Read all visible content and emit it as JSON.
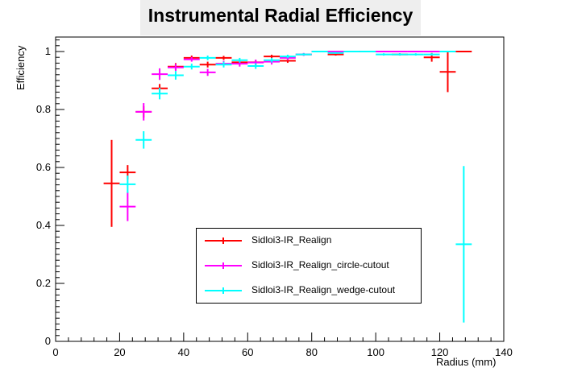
{
  "chart_data": {
    "type": "scatter",
    "title": "Instrumental Radial Efficiency",
    "xlabel": "Radius (mm)",
    "ylabel": "Efficiency",
    "xlim": [
      0,
      140
    ],
    "ylim": [
      0,
      1.05
    ],
    "x_ticks": [
      0,
      20,
      40,
      60,
      80,
      100,
      120,
      140
    ],
    "y_ticks": [
      0,
      0.2,
      0.4,
      0.6,
      0.8,
      1
    ],
    "x_tick_labels": [
      "0",
      "20",
      "40",
      "60",
      "80",
      "100",
      "120",
      "140"
    ],
    "y_tick_labels": [
      "0",
      "0.2",
      "0.4",
      "0.6",
      "0.8",
      "1"
    ],
    "legend_position": "lower-center",
    "series": [
      {
        "name": "Sidloi3-IR_Realign",
        "color": "#ff0000",
        "x_halfwidth": 2.5,
        "x": [
          17.5,
          22.5,
          27.5,
          32.5,
          37.5,
          42.5,
          47.5,
          52.5,
          57.5,
          62.5,
          67.5,
          72.5,
          77.5,
          82.5,
          87.5,
          92.5,
          97.5,
          102.5,
          107.5,
          112.5,
          117.5,
          122.5,
          127.5
        ],
        "y": [
          0.545,
          0.583,
          0.792,
          0.873,
          0.948,
          0.978,
          0.955,
          0.978,
          0.963,
          0.963,
          0.983,
          0.968,
          0.99,
          1.0,
          0.99,
          1.0,
          1.0,
          1.0,
          0.99,
          1.0,
          0.98,
          0.93,
          1.0
        ],
        "yerr": [
          0.15,
          0.025,
          0.02,
          0.015,
          0.012,
          0.008,
          0.01,
          0.007,
          0.008,
          0.008,
          0.006,
          0.007,
          0.004,
          0.002,
          0.004,
          0.002,
          0.002,
          0.002,
          0.004,
          0.002,
          0.015,
          0.07,
          0.0
        ]
      },
      {
        "name": "Sidloi3-IR_Realign_circle-cutout",
        "color": "#ff00ff",
        "x_halfwidth": 2.5,
        "x": [
          22.5,
          27.5,
          32.5,
          37.5,
          42.5,
          47.5,
          52.5,
          57.5,
          62.5,
          67.5,
          72.5,
          77.5,
          82.5,
          87.5,
          92.5,
          97.5,
          102.5,
          107.5,
          112.5,
          117.5
        ],
        "y": [
          0.465,
          0.792,
          0.922,
          0.945,
          0.973,
          0.928,
          0.958,
          0.958,
          0.962,
          0.965,
          0.978,
          0.99,
          1.0,
          1.0,
          1.0,
          1.0,
          1.0,
          1.0,
          1.0,
          1.0
        ],
        "yerr": [
          0.05,
          0.03,
          0.02,
          0.012,
          0.008,
          0.012,
          0.01,
          0.01,
          0.01,
          0.01,
          0.008,
          0.005,
          0.002,
          0.002,
          0.002,
          0.002,
          0.002,
          0.002,
          0.002,
          0.002
        ]
      },
      {
        "name": "Sidloi3-IR_Realign_wedge-cutout",
        "color": "#00ffff",
        "x_halfwidth": 2.5,
        "x": [
          22.5,
          27.5,
          32.5,
          37.5,
          42.5,
          47.5,
          52.5,
          57.5,
          62.5,
          67.5,
          72.5,
          77.5,
          82.5,
          87.5,
          92.5,
          97.5,
          102.5,
          107.5,
          112.5,
          117.5,
          122.5,
          127.5
        ],
        "y": [
          0.542,
          0.695,
          0.855,
          0.918,
          0.948,
          0.978,
          0.955,
          0.97,
          0.95,
          0.97,
          0.983,
          0.99,
          1.0,
          0.995,
          1.0,
          1.0,
          0.99,
          0.99,
          0.99,
          0.99,
          1.0,
          0.335
        ],
        "yerr": [
          0.03,
          0.03,
          0.02,
          0.015,
          0.01,
          0.008,
          0.01,
          0.008,
          0.01,
          0.008,
          0.006,
          0.004,
          0.002,
          0.003,
          0.002,
          0.002,
          0.004,
          0.004,
          0.004,
          0.004,
          0.002,
          0.27
        ]
      }
    ]
  }
}
